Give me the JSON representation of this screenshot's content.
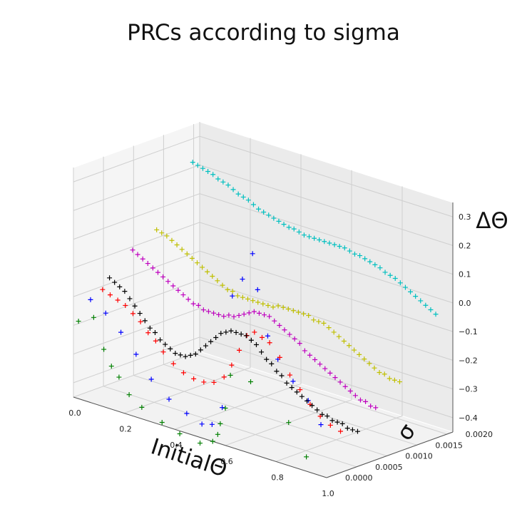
{
  "chart_data": {
    "type": "scatter",
    "projection": "3d",
    "title": "PRCs according to sigma",
    "xlabel": "InitialΘ",
    "ylabel": "σ",
    "zlabel": "ΔΘ",
    "xlim": [
      0.0,
      1.0
    ],
    "ylim": [
      0.0,
      0.0021
    ],
    "zlim": [
      -0.45,
      0.35
    ],
    "xticks": [
      "0.0",
      "0.2",
      "0.4",
      "0.6",
      "0.8",
      "1.0"
    ],
    "yticks": [
      "0.0000",
      "0.0005",
      "0.0010",
      "0.0015",
      "0.0020"
    ],
    "zticks": [
      "0.3",
      "0.2",
      "0.1",
      "0.0",
      "−0.1",
      "−0.2",
      "−0.3",
      "−0.4"
    ],
    "grid": true,
    "marker": "+",
    "series": [
      {
        "color": "#008000",
        "y": 0.0,
        "x": [
          0.02,
          0.08,
          0.12,
          0.15,
          0.18,
          0.22,
          0.27,
          0.35,
          0.42,
          0.5,
          0.55,
          0.57,
          0.58,
          0.6,
          0.62,
          0.7,
          0.85,
          0.92
        ],
        "z": [
          -0.18,
          -0.15,
          -0.25,
          -0.3,
          -0.33,
          -0.38,
          -0.41,
          -0.44,
          -0.46,
          -0.47,
          -0.45,
          -0.42,
          -0.38,
          -0.32,
          -0.2,
          -0.2,
          -0.3,
          -0.4
        ]
      },
      {
        "color": "#0000ff",
        "y": 0.0002,
        "x": [
          0.02,
          0.08,
          0.14,
          0.2,
          0.26,
          0.33,
          0.4,
          0.46,
          0.5,
          0.54,
          0.58,
          0.62,
          0.66,
          0.68,
          0.72,
          0.76,
          0.82,
          0.88,
          0.93
        ],
        "z": [
          -0.12,
          -0.15,
          -0.2,
          -0.26,
          -0.33,
          -0.38,
          -0.41,
          -0.43,
          -0.42,
          -0.35,
          0.05,
          0.12,
          0.22,
          0.1,
          -0.05,
          -0.12,
          -0.18,
          -0.23,
          -0.3
        ]
      },
      {
        "color": "#ff0000",
        "y": 0.0004,
        "x": [
          0.02,
          0.05,
          0.08,
          0.11,
          0.14,
          0.17,
          0.2,
          0.23,
          0.26,
          0.3,
          0.34,
          0.38,
          0.42,
          0.46,
          0.5,
          0.53,
          0.56,
          0.59,
          0.62,
          0.65,
          0.68,
          0.72,
          0.76,
          0.8,
          0.84,
          0.88,
          0.92,
          0.96
        ],
        "z": [
          -0.1,
          -0.11,
          -0.12,
          -0.13,
          -0.15,
          -0.17,
          -0.2,
          -0.22,
          -0.25,
          -0.28,
          -0.3,
          -0.31,
          -0.31,
          -0.3,
          -0.27,
          -0.22,
          -0.16,
          -0.1,
          -0.08,
          -0.09,
          -0.1,
          -0.14,
          -0.19,
          -0.23,
          -0.27,
          -0.3,
          -0.32,
          -0.33
        ]
      },
      {
        "color": "#000000",
        "y": 0.0006,
        "x": [
          0.0,
          0.02,
          0.04,
          0.06,
          0.08,
          0.1,
          0.12,
          0.14,
          0.16,
          0.18,
          0.2,
          0.22,
          0.24,
          0.26,
          0.28,
          0.3,
          0.32,
          0.34,
          0.36,
          0.38,
          0.4,
          0.42,
          0.44,
          0.46,
          0.48,
          0.5,
          0.52,
          0.54,
          0.56,
          0.58,
          0.6,
          0.62,
          0.64,
          0.66,
          0.68,
          0.7,
          0.72,
          0.74,
          0.76,
          0.78,
          0.8,
          0.82,
          0.84,
          0.86,
          0.88,
          0.9,
          0.92,
          0.94,
          0.96,
          0.98
        ],
        "z": [
          -0.08,
          -0.09,
          -0.1,
          -0.11,
          -0.13,
          -0.15,
          -0.17,
          -0.19,
          -0.21,
          -0.22,
          -0.24,
          -0.25,
          -0.26,
          -0.27,
          -0.27,
          -0.27,
          -0.26,
          -0.25,
          -0.23,
          -0.21,
          -0.19,
          -0.17,
          -0.15,
          -0.14,
          -0.13,
          -0.13,
          -0.13,
          -0.13,
          -0.14,
          -0.15,
          -0.17,
          -0.19,
          -0.2,
          -0.22,
          -0.23,
          -0.25,
          -0.26,
          -0.27,
          -0.28,
          -0.29,
          -0.3,
          -0.31,
          -0.32,
          -0.32,
          -0.33,
          -0.33,
          -0.33,
          -0.34,
          -0.34,
          -0.34
        ]
      },
      {
        "color": "#bf00bf",
        "y": 0.0009,
        "x": [
          0.02,
          0.04,
          0.06,
          0.08,
          0.1,
          0.12,
          0.14,
          0.16,
          0.18,
          0.2,
          0.22,
          0.24,
          0.26,
          0.28,
          0.3,
          0.32,
          0.34,
          0.36,
          0.38,
          0.4,
          0.42,
          0.44,
          0.46,
          0.48,
          0.5,
          0.52,
          0.54,
          0.56,
          0.58,
          0.6,
          0.62,
          0.64,
          0.66,
          0.68,
          0.7,
          0.72,
          0.74,
          0.76,
          0.78,
          0.8,
          0.82,
          0.84,
          0.86,
          0.88,
          0.9,
          0.92,
          0.94,
          0.96,
          0.98
        ],
        "z": [
          0.0,
          -0.01,
          -0.02,
          -0.03,
          -0.04,
          -0.05,
          -0.06,
          -0.07,
          -0.08,
          -0.09,
          -0.1,
          -0.11,
          -0.12,
          -0.12,
          -0.13,
          -0.13,
          -0.13,
          -0.13,
          -0.13,
          -0.12,
          -0.12,
          -0.11,
          -0.1,
          -0.09,
          -0.08,
          -0.08,
          -0.08,
          -0.08,
          -0.09,
          -0.1,
          -0.11,
          -0.12,
          -0.13,
          -0.14,
          -0.16,
          -0.17,
          -0.18,
          -0.19,
          -0.2,
          -0.21,
          -0.22,
          -0.23,
          -0.24,
          -0.25,
          -0.26,
          -0.27,
          -0.27,
          -0.28,
          -0.28
        ]
      },
      {
        "color": "#bfbf00",
        "y": 0.0013,
        "x": [
          0.02,
          0.04,
          0.06,
          0.08,
          0.1,
          0.12,
          0.14,
          0.16,
          0.18,
          0.2,
          0.22,
          0.24,
          0.26,
          0.28,
          0.3,
          0.32,
          0.34,
          0.36,
          0.38,
          0.4,
          0.42,
          0.44,
          0.46,
          0.48,
          0.5,
          0.52,
          0.54,
          0.56,
          0.58,
          0.6,
          0.62,
          0.64,
          0.66,
          0.68,
          0.7,
          0.72,
          0.74,
          0.76,
          0.78,
          0.8,
          0.82,
          0.84,
          0.86,
          0.88,
          0.9,
          0.92,
          0.94,
          0.96,
          0.98
        ],
        "z": [
          0.04,
          0.035,
          0.03,
          0.02,
          0.01,
          0.0,
          -0.01,
          -0.02,
          -0.03,
          -0.04,
          -0.05,
          -0.06,
          -0.07,
          -0.08,
          -0.09,
          -0.09,
          -0.1,
          -0.1,
          -0.1,
          -0.1,
          -0.1,
          -0.1,
          -0.1,
          -0.1,
          -0.09,
          -0.09,
          -0.09,
          -0.09,
          -0.09,
          -0.09,
          -0.09,
          -0.1,
          -0.1,
          -0.1,
          -0.11,
          -0.12,
          -0.13,
          -0.14,
          -0.15,
          -0.16,
          -0.17,
          -0.18,
          -0.19,
          -0.2,
          -0.21,
          -0.21,
          -0.22,
          -0.22,
          -0.22
        ]
      },
      {
        "color": "#00bfbf",
        "y": 0.0019,
        "x": [
          0.02,
          0.04,
          0.06,
          0.08,
          0.1,
          0.12,
          0.14,
          0.16,
          0.18,
          0.2,
          0.22,
          0.24,
          0.26,
          0.28,
          0.3,
          0.32,
          0.34,
          0.36,
          0.38,
          0.4,
          0.42,
          0.44,
          0.46,
          0.48,
          0.5,
          0.52,
          0.54,
          0.56,
          0.58,
          0.6,
          0.62,
          0.64,
          0.66,
          0.68,
          0.7,
          0.72,
          0.74,
          0.76,
          0.78,
          0.8,
          0.82,
          0.84,
          0.86,
          0.88,
          0.9,
          0.92,
          0.94,
          0.96,
          0.98
        ],
        "z": [
          0.23,
          0.225,
          0.22,
          0.215,
          0.21,
          0.2,
          0.195,
          0.19,
          0.18,
          0.17,
          0.165,
          0.16,
          0.15,
          0.14,
          0.135,
          0.13,
          0.125,
          0.12,
          0.115,
          0.11,
          0.11,
          0.105,
          0.1,
          0.1,
          0.1,
          0.1,
          0.1,
          0.1,
          0.1,
          0.1,
          0.1,
          0.095,
          0.09,
          0.09,
          0.085,
          0.08,
          0.075,
          0.07,
          0.06,
          0.055,
          0.05,
          0.04,
          0.03,
          0.02,
          0.01,
          0.0,
          -0.01,
          -0.02,
          -0.03
        ]
      }
    ]
  }
}
